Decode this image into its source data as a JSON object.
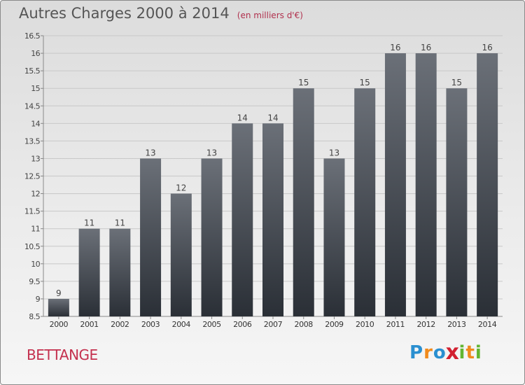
{
  "chart_data": {
    "type": "bar",
    "title": "Autres Charges 2000 à 2014",
    "subtitle": "(en milliers d'€)",
    "categories": [
      "2000",
      "2001",
      "2002",
      "2003",
      "2004",
      "2005",
      "2006",
      "2007",
      "2008",
      "2009",
      "2010",
      "2011",
      "2012",
      "2013",
      "2014"
    ],
    "values": [
      9,
      11,
      11,
      13,
      12,
      13,
      14,
      14,
      15,
      13,
      15,
      16,
      16,
      15,
      16
    ],
    "value_labels": [
      "9",
      "11",
      "11",
      "13",
      "12",
      "13",
      "14",
      "14",
      "15",
      "13",
      "15",
      "16",
      "16",
      "15",
      "16"
    ],
    "y_ticks": [
      "8.5",
      "9",
      "9.5",
      "10",
      "10.5",
      "11",
      "11.5",
      "12",
      "12.5",
      "13",
      "13.5",
      "14",
      "14.5",
      "15",
      "15.5",
      "16",
      "16.5"
    ],
    "ylim": [
      8.5,
      16.5
    ],
    "grid": true,
    "bar_color_top": "#6b7078",
    "bar_color_bottom": "#2a2f36"
  },
  "footer": {
    "town": "BETTANGE",
    "logo_letters": [
      "P",
      "r",
      "o",
      "x",
      "i",
      "t",
      "i"
    ],
    "logo_colors": [
      "#2a8fd0",
      "#f08a1c",
      "#2a8fd0",
      "#d22030",
      "#62b531",
      "#f08a1c",
      "#62b531"
    ]
  }
}
